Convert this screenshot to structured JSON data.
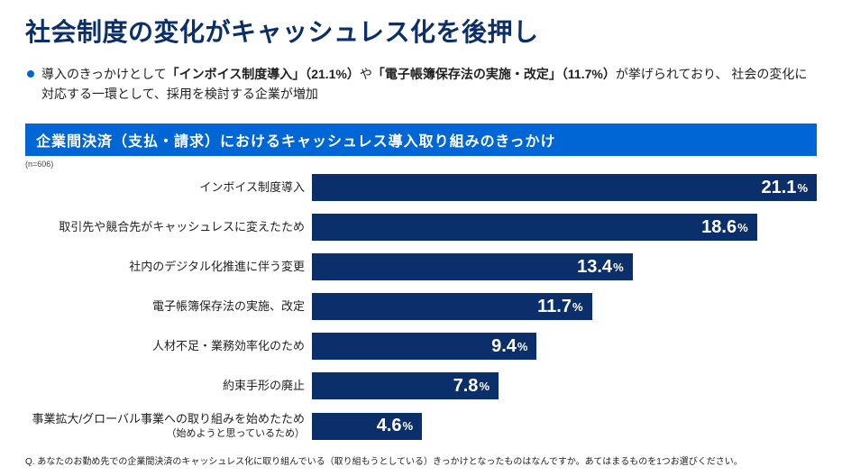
{
  "title": "社会制度の変化がキャッシュレス化を後押し",
  "bullet": {
    "pre": "導入のきっかけとして",
    "bold1": "「インボイス制度導入」（21.1%）",
    "mid": "や",
    "bold2": "「電子帳簿保存法の実施・改定」（11.7%）",
    "post": "が挙げられており、 社会の変化に対応する一環として、採用を検討する企業が増加"
  },
  "banner": "企業間決済（支払・請求）におけるキャッシュレス導入取り組みのきっかけ",
  "n_note": "(n=606)",
  "chart": {
    "type": "bar",
    "max": 21.1,
    "bar_color": "#0b2f6b",
    "brand_blue": "#0066d6",
    "unit": "%",
    "rows": [
      {
        "label": "インボイス制度導入",
        "value": 21.1
      },
      {
        "label": "取引先や競合先がキャッシュレスに変えたため",
        "value": 18.6
      },
      {
        "label": "社内のデジタル化推進に伴う変更",
        "value": 13.4
      },
      {
        "label": "電子帳簿保存法の実施、改定",
        "value": 11.7
      },
      {
        "label": "人材不足・業務効率化のため",
        "value": 9.4
      },
      {
        "label": "約束手形の廃止",
        "value": 7.8
      },
      {
        "label": "事業拡大/グローバル事業への取り組みを始めたため",
        "sub": "（始めようと思っているため）",
        "value": 4.6
      }
    ]
  },
  "footer_question": "Q. あなたのお勤め先での企業間決済のキャッシュレス化に取り組んでいる（取り組もうとしている）きっかけとなったものはなんですか。あてはまるものを1つお選びください。"
}
